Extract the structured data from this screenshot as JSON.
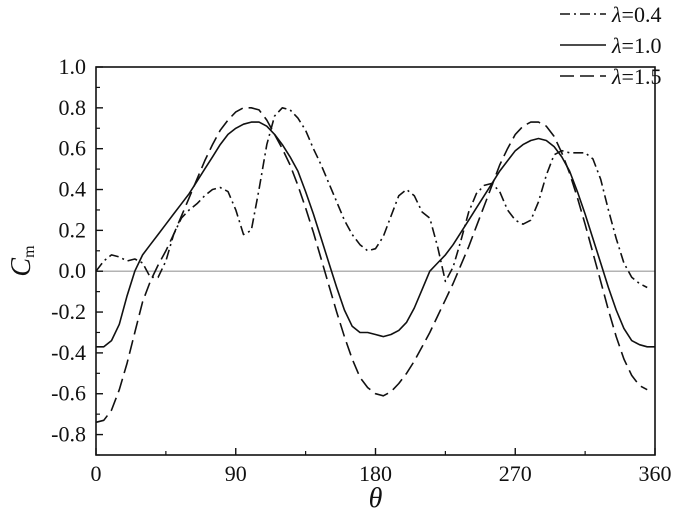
{
  "chart_data": {
    "type": "line",
    "xlabel": "θ",
    "ylabel": "C",
    "ylabel_sub": "m",
    "xlim": [
      0,
      360
    ],
    "ylim": [
      -0.9,
      1.0
    ],
    "xticks": [
      0,
      90,
      180,
      270,
      360
    ],
    "xtick_labels": [
      "0",
      "90",
      "180",
      "270",
      "360"
    ],
    "yticks": [
      -0.8,
      -0.6,
      -0.4,
      -0.2,
      0.0,
      0.2,
      0.4,
      0.6,
      0.8,
      1.0
    ],
    "ytick_labels": [
      "-0.8",
      "-0.6",
      "-0.4",
      "-0.2",
      "0.0",
      "0.2",
      "0.4",
      "0.6",
      "0.8",
      "1.0"
    ],
    "reference_line_y": 0.0,
    "legend_position": "top-right",
    "series": [
      {
        "symbol": "λ",
        "eq": "=0.4",
        "dash": "dashdot",
        "points": [
          [
            0,
            0.0
          ],
          [
            5,
            0.05
          ],
          [
            10,
            0.08
          ],
          [
            15,
            0.07
          ],
          [
            20,
            0.05
          ],
          [
            25,
            0.06
          ],
          [
            30,
            0.04
          ],
          [
            35,
            -0.03
          ],
          [
            40,
            -0.03
          ],
          [
            45,
            0.05
          ],
          [
            50,
            0.18
          ],
          [
            55,
            0.26
          ],
          [
            60,
            0.3
          ],
          [
            65,
            0.33
          ],
          [
            70,
            0.37
          ],
          [
            75,
            0.4
          ],
          [
            80,
            0.41
          ],
          [
            85,
            0.39
          ],
          [
            90,
            0.3
          ],
          [
            95,
            0.18
          ],
          [
            100,
            0.2
          ],
          [
            105,
            0.4
          ],
          [
            110,
            0.62
          ],
          [
            115,
            0.76
          ],
          [
            120,
            0.8
          ],
          [
            125,
            0.79
          ],
          [
            130,
            0.75
          ],
          [
            135,
            0.69
          ],
          [
            140,
            0.6
          ],
          [
            145,
            0.52
          ],
          [
            150,
            0.43
          ],
          [
            155,
            0.34
          ],
          [
            160,
            0.25
          ],
          [
            165,
            0.18
          ],
          [
            170,
            0.13
          ],
          [
            175,
            0.1
          ],
          [
            180,
            0.11
          ],
          [
            185,
            0.17
          ],
          [
            190,
            0.27
          ],
          [
            195,
            0.37
          ],
          [
            200,
            0.4
          ],
          [
            205,
            0.37
          ],
          [
            210,
            0.29
          ],
          [
            215,
            0.26
          ],
          [
            220,
            0.12
          ],
          [
            225,
            -0.05
          ],
          [
            230,
            0.02
          ],
          [
            235,
            0.15
          ],
          [
            240,
            0.29
          ],
          [
            245,
            0.38
          ],
          [
            250,
            0.42
          ],
          [
            255,
            0.43
          ],
          [
            260,
            0.39
          ],
          [
            265,
            0.3
          ],
          [
            270,
            0.25
          ],
          [
            275,
            0.23
          ],
          [
            280,
            0.25
          ],
          [
            285,
            0.34
          ],
          [
            290,
            0.47
          ],
          [
            295,
            0.57
          ],
          [
            300,
            0.59
          ],
          [
            305,
            0.58
          ],
          [
            310,
            0.58
          ],
          [
            315,
            0.58
          ],
          [
            320,
            0.55
          ],
          [
            325,
            0.45
          ],
          [
            330,
            0.3
          ],
          [
            335,
            0.16
          ],
          [
            340,
            0.04
          ],
          [
            345,
            -0.03
          ],
          [
            350,
            -0.06
          ],
          [
            355,
            -0.08
          ]
        ]
      },
      {
        "symbol": "λ",
        "eq": "=1.0",
        "dash": "solid",
        "points": [
          [
            0,
            -0.37
          ],
          [
            5,
            -0.37
          ],
          [
            10,
            -0.34
          ],
          [
            15,
            -0.26
          ],
          [
            20,
            -0.12
          ],
          [
            25,
            0.0
          ],
          [
            30,
            0.08
          ],
          [
            35,
            0.13
          ],
          [
            40,
            0.18
          ],
          [
            45,
            0.23
          ],
          [
            50,
            0.28
          ],
          [
            55,
            0.33
          ],
          [
            60,
            0.38
          ],
          [
            65,
            0.44
          ],
          [
            70,
            0.5
          ],
          [
            75,
            0.56
          ],
          [
            80,
            0.62
          ],
          [
            85,
            0.67
          ],
          [
            90,
            0.7
          ],
          [
            95,
            0.72
          ],
          [
            100,
            0.73
          ],
          [
            105,
            0.73
          ],
          [
            110,
            0.71
          ],
          [
            115,
            0.67
          ],
          [
            120,
            0.62
          ],
          [
            125,
            0.56
          ],
          [
            130,
            0.49
          ],
          [
            135,
            0.39
          ],
          [
            140,
            0.28
          ],
          [
            145,
            0.16
          ],
          [
            150,
            0.04
          ],
          [
            155,
            -0.08
          ],
          [
            160,
            -0.19
          ],
          [
            165,
            -0.27
          ],
          [
            170,
            -0.3
          ],
          [
            175,
            -0.3
          ],
          [
            180,
            -0.31
          ],
          [
            185,
            -0.32
          ],
          [
            190,
            -0.31
          ],
          [
            195,
            -0.29
          ],
          [
            200,
            -0.25
          ],
          [
            205,
            -0.18
          ],
          [
            210,
            -0.09
          ],
          [
            215,
            0.0
          ],
          [
            220,
            0.04
          ],
          [
            225,
            0.08
          ],
          [
            230,
            0.13
          ],
          [
            235,
            0.19
          ],
          [
            240,
            0.25
          ],
          [
            245,
            0.31
          ],
          [
            250,
            0.37
          ],
          [
            255,
            0.43
          ],
          [
            260,
            0.49
          ],
          [
            265,
            0.54
          ],
          [
            270,
            0.59
          ],
          [
            275,
            0.62
          ],
          [
            280,
            0.64
          ],
          [
            285,
            0.65
          ],
          [
            290,
            0.64
          ],
          [
            295,
            0.61
          ],
          [
            300,
            0.56
          ],
          [
            305,
            0.49
          ],
          [
            310,
            0.39
          ],
          [
            315,
            0.28
          ],
          [
            320,
            0.16
          ],
          [
            325,
            0.04
          ],
          [
            330,
            -0.08
          ],
          [
            335,
            -0.19
          ],
          [
            340,
            -0.28
          ],
          [
            345,
            -0.34
          ],
          [
            350,
            -0.36
          ],
          [
            355,
            -0.37
          ],
          [
            360,
            -0.37
          ]
        ]
      },
      {
        "symbol": "λ",
        "eq": "=1.5",
        "dash": "dashed",
        "points": [
          [
            0,
            -0.74
          ],
          [
            5,
            -0.73
          ],
          [
            10,
            -0.68
          ],
          [
            15,
            -0.58
          ],
          [
            20,
            -0.45
          ],
          [
            25,
            -0.3
          ],
          [
            30,
            -0.15
          ],
          [
            35,
            -0.05
          ],
          [
            40,
            0.03
          ],
          [
            45,
            0.1
          ],
          [
            50,
            0.18
          ],
          [
            55,
            0.27
          ],
          [
            60,
            0.36
          ],
          [
            65,
            0.45
          ],
          [
            70,
            0.54
          ],
          [
            75,
            0.62
          ],
          [
            80,
            0.69
          ],
          [
            85,
            0.74
          ],
          [
            90,
            0.78
          ],
          [
            95,
            0.8
          ],
          [
            100,
            0.8
          ],
          [
            105,
            0.79
          ],
          [
            110,
            0.74
          ],
          [
            115,
            0.67
          ],
          [
            120,
            0.6
          ],
          [
            125,
            0.52
          ],
          [
            130,
            0.42
          ],
          [
            135,
            0.31
          ],
          [
            140,
            0.19
          ],
          [
            145,
            0.06
          ],
          [
            150,
            -0.07
          ],
          [
            155,
            -0.2
          ],
          [
            160,
            -0.32
          ],
          [
            165,
            -0.43
          ],
          [
            170,
            -0.52
          ],
          [
            175,
            -0.57
          ],
          [
            180,
            -0.6
          ],
          [
            185,
            -0.61
          ],
          [
            190,
            -0.59
          ],
          [
            195,
            -0.55
          ],
          [
            200,
            -0.5
          ],
          [
            205,
            -0.44
          ],
          [
            210,
            -0.37
          ],
          [
            215,
            -0.3
          ],
          [
            220,
            -0.22
          ],
          [
            225,
            -0.14
          ],
          [
            230,
            -0.06
          ],
          [
            235,
            0.03
          ],
          [
            240,
            0.12
          ],
          [
            245,
            0.22
          ],
          [
            250,
            0.32
          ],
          [
            255,
            0.42
          ],
          [
            260,
            0.52
          ],
          [
            265,
            0.6
          ],
          [
            270,
            0.67
          ],
          [
            275,
            0.71
          ],
          [
            280,
            0.73
          ],
          [
            285,
            0.73
          ],
          [
            290,
            0.71
          ],
          [
            295,
            0.66
          ],
          [
            300,
            0.58
          ],
          [
            305,
            0.48
          ],
          [
            310,
            0.36
          ],
          [
            315,
            0.23
          ],
          [
            320,
            0.09
          ],
          [
            325,
            -0.05
          ],
          [
            330,
            -0.19
          ],
          [
            335,
            -0.32
          ],
          [
            340,
            -0.43
          ],
          [
            345,
            -0.51
          ],
          [
            350,
            -0.56
          ],
          [
            355,
            -0.58
          ]
        ]
      }
    ]
  }
}
